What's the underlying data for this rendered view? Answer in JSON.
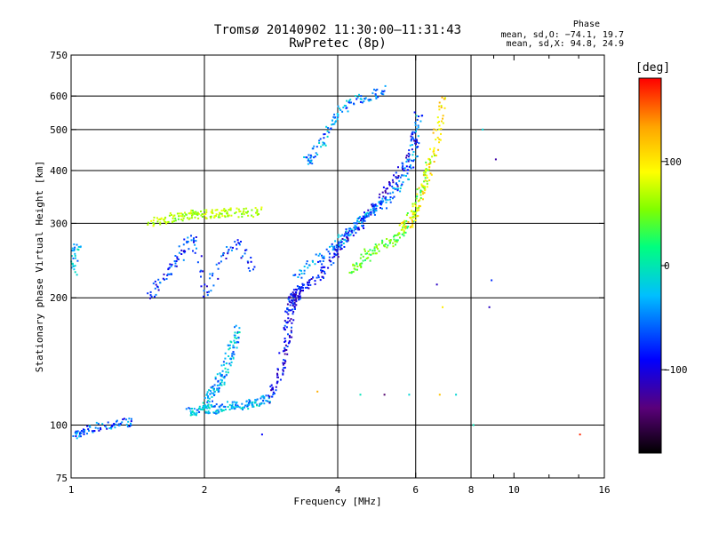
{
  "header": {
    "title": "Tromsø 20140902 11:30:00–11:31:43",
    "subtitle": "RwPretec (8p)",
    "phase_title": "Phase",
    "phase_o": "mean, sd,O: −74.1, 19.7",
    "phase_x": "mean, sd,X:  94.8, 24.9"
  },
  "colorbar": {
    "unit_label": "[deg]",
    "ticks": [
      {
        "value": 100,
        "label": "100"
      },
      {
        "value": 0,
        "label": "0"
      },
      {
        "value": -100,
        "label": "−100"
      }
    ],
    "range": [
      -180,
      180
    ],
    "colors": [
      "#000000",
      "#5a007a",
      "#0000ff",
      "#00bfff",
      "#00ff7f",
      "#7fff00",
      "#ffff00",
      "#ffa500",
      "#ff0000"
    ]
  },
  "chart_data": {
    "type": "scatter",
    "title": "Tromsø 20140902 11:30:00–11:31:43",
    "subtitle": "RwPretec (8p)",
    "xlabel": "Frequency [MHz]",
    "ylabel": "Stationary phase Virtual Height [km]",
    "x_scale": "log",
    "y_scale": "log",
    "xlim": [
      1,
      16
    ],
    "ylim": [
      75,
      750
    ],
    "grid": true,
    "x_ticks": [
      {
        "value": 1,
        "label": "1"
      },
      {
        "value": 2,
        "label": "2"
      },
      {
        "value": 4,
        "label": "4"
      },
      {
        "value": 6,
        "label": "6"
      },
      {
        "value": 8,
        "label": "8"
      },
      {
        "value": 10,
        "label": "10"
      },
      {
        "value": 16,
        "label": "16"
      }
    ],
    "x_gridlines": [
      2,
      4,
      6,
      8
    ],
    "y_ticks": [
      {
        "value": 75,
        "label": "75"
      },
      {
        "value": 100,
        "label": "100"
      },
      {
        "value": 200,
        "label": "200"
      },
      {
        "value": 300,
        "label": "300"
      },
      {
        "value": 400,
        "label": "400"
      },
      {
        "value": 500,
        "label": "500"
      },
      {
        "value": 600,
        "label": "600"
      },
      {
        "value": 750,
        "label": "750"
      }
    ],
    "y_gridlines": [
      100,
      200,
      300,
      400,
      500,
      600
    ],
    "colorbar_label": "[deg]",
    "phase_range": [
      -180,
      180
    ],
    "traces": [
      {
        "x": [
          1.0,
          1.05,
          1.1,
          1.2,
          1.3,
          1.4
        ],
        "y": [
          95,
          95,
          98,
          100,
          101,
          102
        ],
        "phase": -70
      },
      {
        "x": [
          1.85,
          1.9,
          2.0,
          2.1,
          2.2,
          2.3,
          2.4,
          2.5,
          2.6,
          2.7,
          2.8
        ],
        "y": [
          107,
          108,
          108,
          109,
          110,
          111,
          111,
          112,
          113,
          114,
          115
        ],
        "phase": -45
      },
      {
        "x": [
          2.0,
          2.05,
          2.1,
          2.15,
          2.2,
          2.25,
          2.3,
          2.35,
          2.4
        ],
        "y": [
          110,
          115,
          120,
          125,
          130,
          140,
          150,
          160,
          170
        ],
        "phase": -45
      },
      {
        "x": [
          2.8,
          2.9,
          3.0,
          3.05,
          3.1,
          3.12,
          3.15,
          3.2,
          3.25,
          3.3
        ],
        "y": [
          115,
          125,
          140,
          155,
          170,
          185,
          195,
          200,
          205,
          210
        ],
        "phase": -95
      },
      {
        "x": [
          3.1,
          3.3,
          3.5,
          3.7,
          3.9,
          4.1,
          4.3,
          4.5,
          4.7,
          5.0,
          5.3,
          5.6,
          5.9,
          6.0
        ],
        "y": [
          195,
          210,
          220,
          230,
          250,
          270,
          285,
          300,
          320,
          340,
          370,
          400,
          450,
          500
        ],
        "phase": -95
      },
      {
        "x": [
          3.2,
          3.5,
          3.8,
          4.0,
          4.2,
          4.4,
          4.6,
          4.8,
          5.0,
          5.3,
          5.6,
          5.9,
          6.0,
          6.1
        ],
        "y": [
          220,
          240,
          255,
          270,
          285,
          300,
          310,
          320,
          330,
          350,
          380,
          420,
          480,
          560
        ],
        "phase": -60
      },
      {
        "x": [
          4.3,
          4.5,
          4.7,
          5.0,
          5.3,
          5.5,
          5.8,
          6.0,
          6.3,
          6.5
        ],
        "y": [
          230,
          240,
          255,
          265,
          270,
          280,
          300,
          330,
          380,
          430
        ],
        "phase": 30
      },
      {
        "x": [
          5.6,
          5.8,
          6.0,
          6.2,
          6.4,
          6.6,
          6.8,
          7.0
        ],
        "y": [
          290,
          300,
          320,
          360,
          400,
          450,
          520,
          600
        ],
        "phase": 100
      },
      {
        "x": [
          3.4,
          3.5,
          3.7,
          3.9,
          4.1,
          4.4,
          4.8,
          5.2
        ],
        "y": [
          420,
          430,
          470,
          520,
          560,
          590,
          600,
          620
        ],
        "phase": -55
      },
      {
        "x": [
          1.5,
          1.6,
          1.7,
          1.8,
          1.9,
          2.0,
          2.1,
          2.2,
          2.3,
          2.5,
          2.7
        ],
        "y": [
          300,
          305,
          310,
          310,
          315,
          315,
          315,
          318,
          318,
          318,
          320
        ],
        "phase": 60
      },
      {
        "x": [
          1.5,
          1.6,
          1.7,
          1.8,
          1.9,
          2.0,
          2.2,
          2.4,
          2.6
        ],
        "y": [
          200,
          220,
          240,
          260,
          280,
          200,
          250,
          270,
          230
        ],
        "phase": -80
      },
      {
        "x": [
          1.01,
          1.02,
          1.03
        ],
        "y": [
          230,
          250,
          270
        ],
        "phase": -40
      }
    ],
    "isolated_points": [
      {
        "x": 9.1,
        "y": 425,
        "phase": -120
      },
      {
        "x": 8.5,
        "y": 500,
        "phase": -30
      },
      {
        "x": 8.9,
        "y": 220,
        "phase": -80
      },
      {
        "x": 8.8,
        "y": 190,
        "phase": -110
      },
      {
        "x": 3.6,
        "y": 120,
        "phase": 130
      },
      {
        "x": 4.5,
        "y": 118,
        "phase": -20
      },
      {
        "x": 5.1,
        "y": 118,
        "phase": -140
      },
      {
        "x": 5.8,
        "y": 118,
        "phase": -30
      },
      {
        "x": 6.8,
        "y": 118,
        "phase": 120
      },
      {
        "x": 7.4,
        "y": 118,
        "phase": -30
      },
      {
        "x": 2.7,
        "y": 95,
        "phase": -90
      },
      {
        "x": 14.1,
        "y": 95,
        "phase": 170
      },
      {
        "x": 6.9,
        "y": 190,
        "phase": 100
      },
      {
        "x": 6.7,
        "y": 215,
        "phase": -110
      },
      {
        "x": 8.1,
        "y": 100,
        "phase": -20
      }
    ]
  }
}
